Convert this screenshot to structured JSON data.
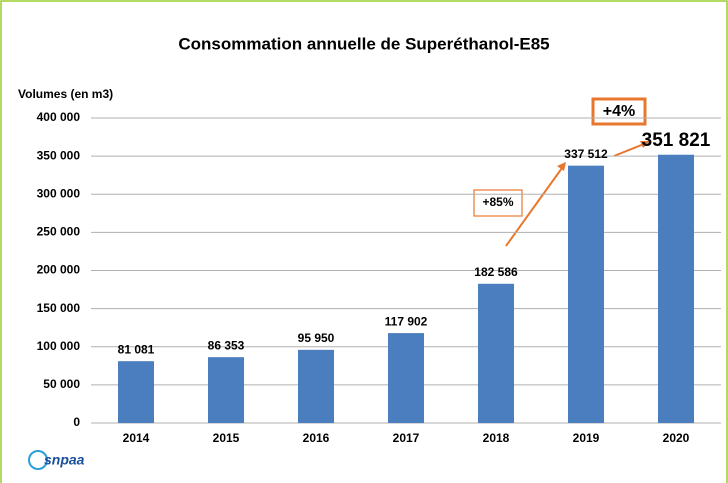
{
  "chart_data": {
    "type": "bar",
    "title": "Consommation annuelle de Superéthanol-E85",
    "y_label": "Volumes (en m3)",
    "categories": [
      "2014",
      "2015",
      "2016",
      "2017",
      "2018",
      "2019",
      "2020"
    ],
    "values": [
      81081,
      86353,
      95950,
      117902,
      182586,
      337512,
      351821
    ],
    "value_labels": [
      "81 081",
      "86 353",
      "95 950",
      "117 902",
      "182 586",
      "337 512",
      "351 821"
    ],
    "color": "#4a7ebf",
    "ylim": [
      0,
      400000
    ],
    "yticks": [
      0,
      {
        "value": 50000,
        "label": "50 000"
      },
      {
        "value": 100000,
        "label": "100 000"
      },
      {
        "value": 150000,
        "label": "150 000"
      },
      {
        "value": 200000,
        "label": "200 000"
      },
      {
        "value": 250000,
        "label": "250 000"
      },
      {
        "value": 300000,
        "label": "300 000"
      },
      {
        "value": 350000,
        "label": "350 000"
      },
      {
        "value": 400000,
        "label": "400 000"
      }
    ],
    "grid": true,
    "annotations": [
      {
        "text": "+85%"
      },
      {
        "text": "+4%"
      }
    ],
    "logo": "snpaa"
  }
}
